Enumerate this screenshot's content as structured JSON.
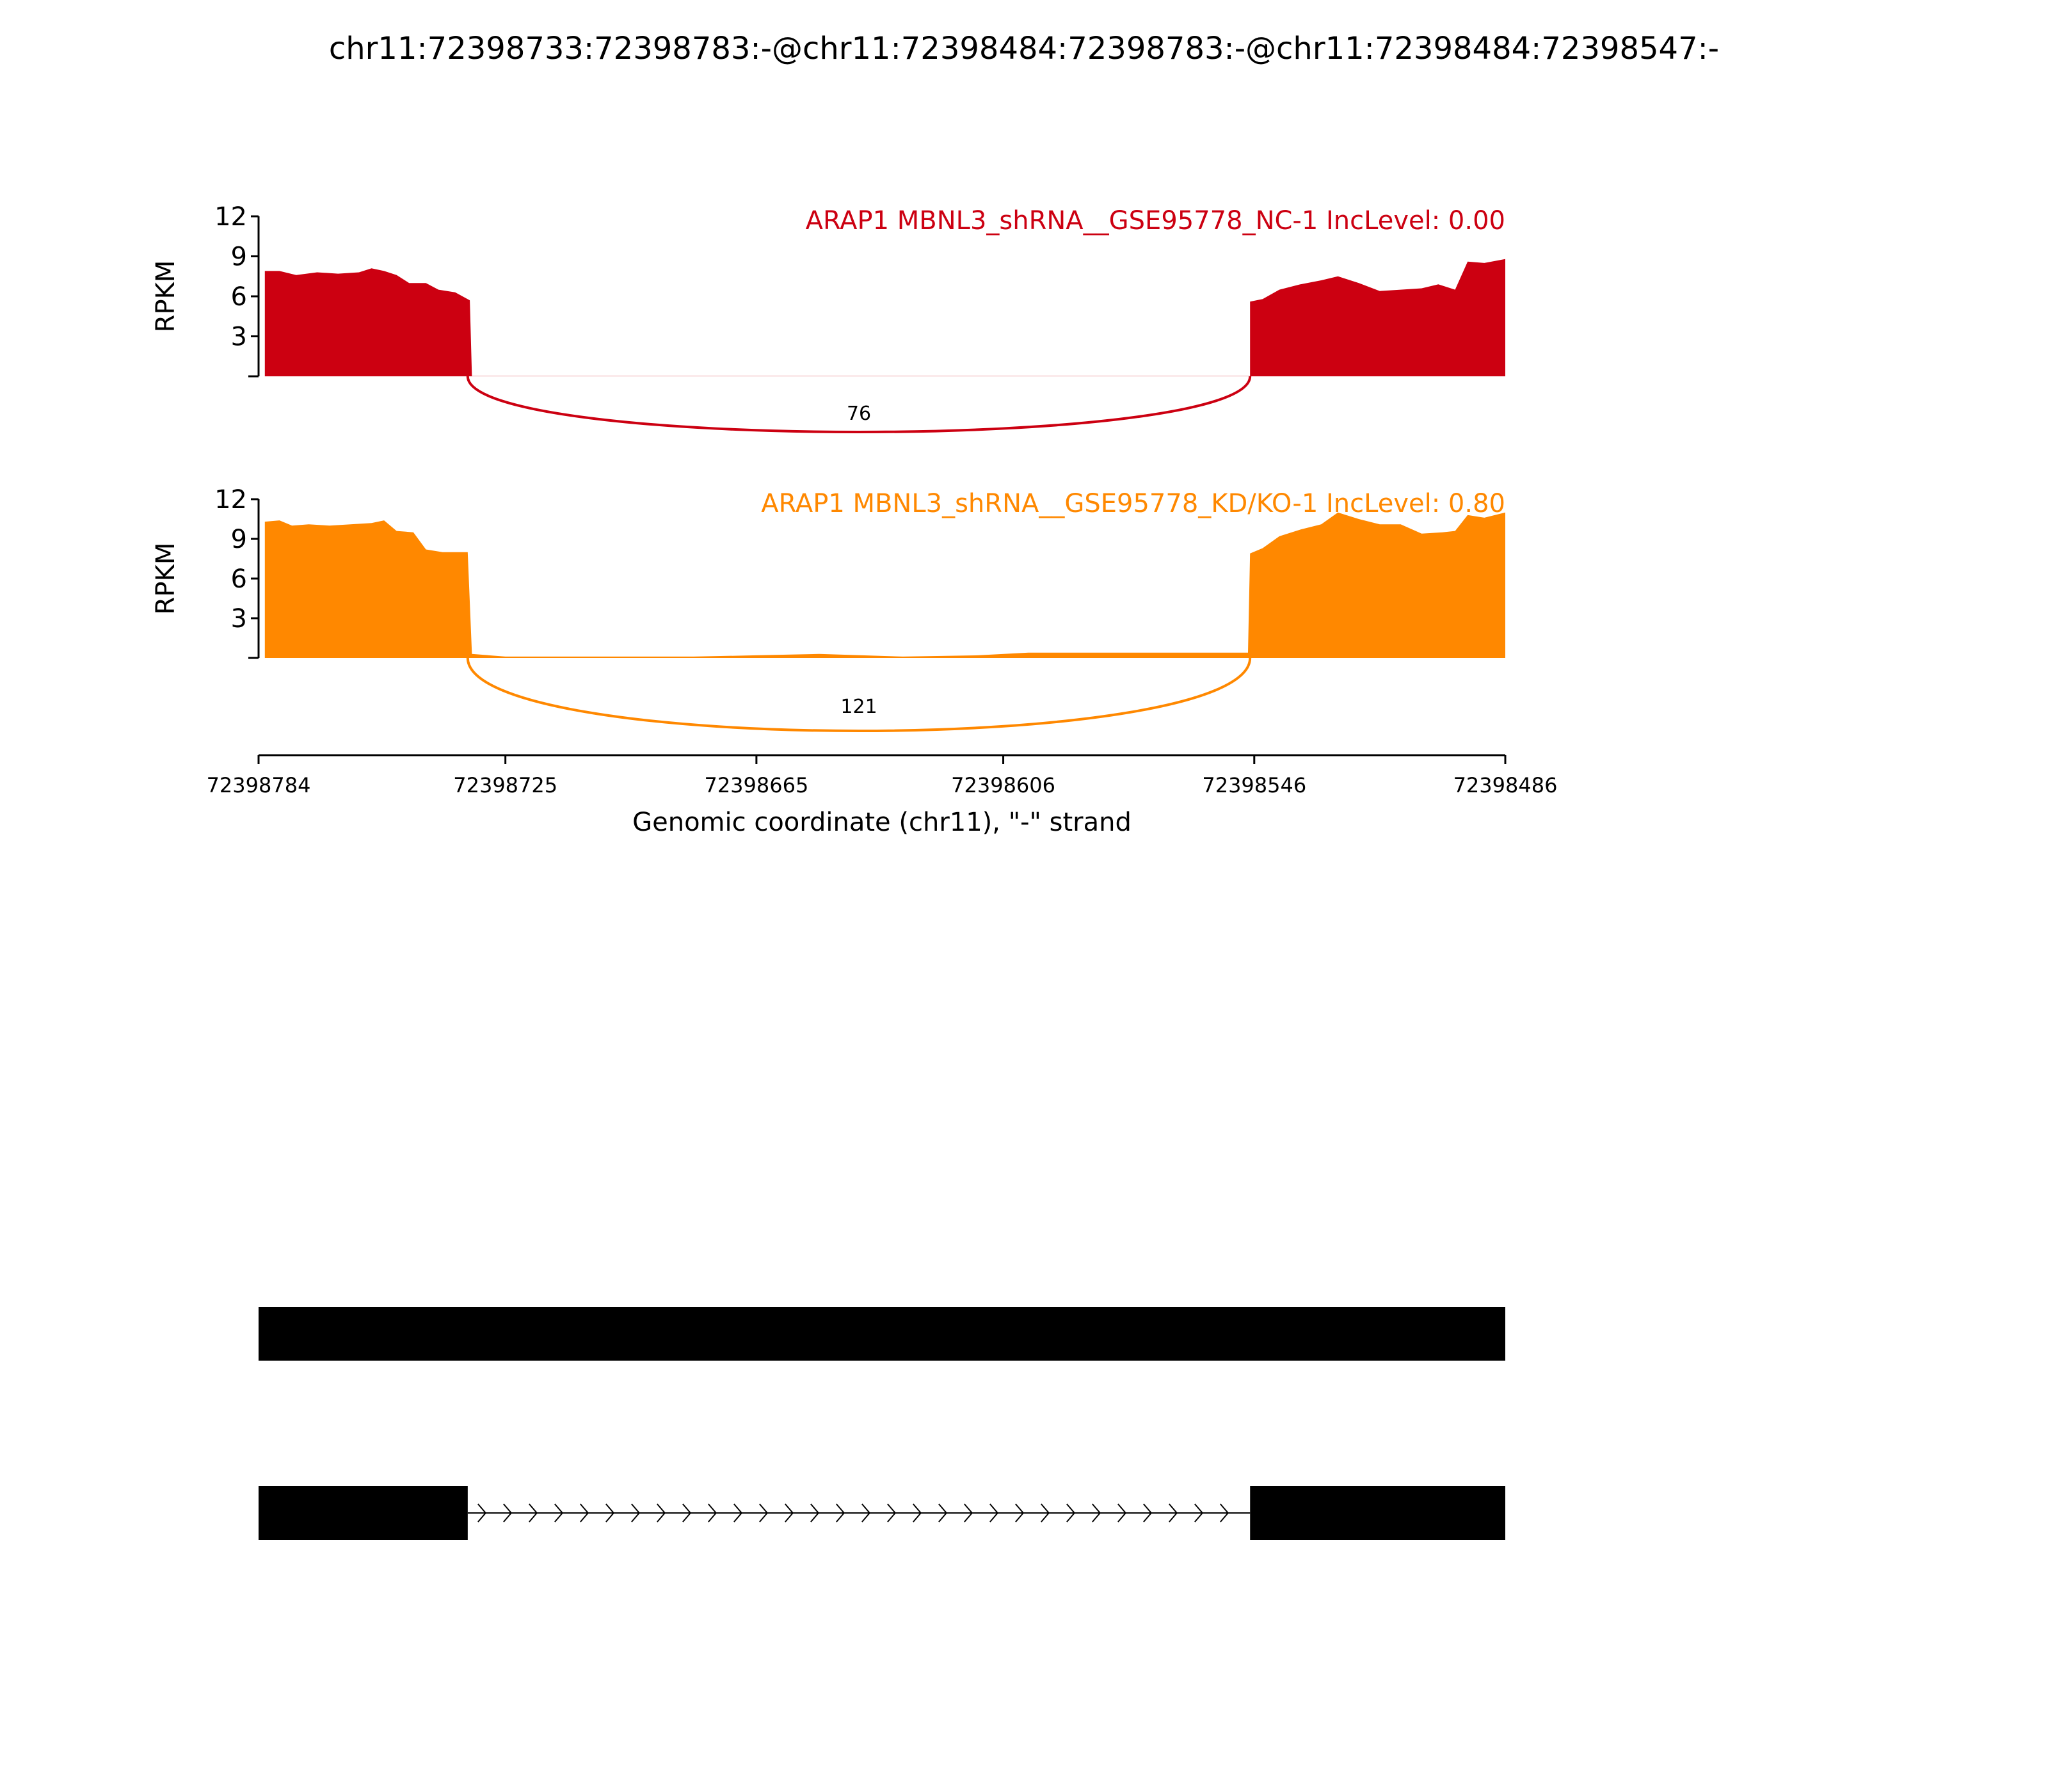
{
  "title": "chr11:72398733:72398783:-@chr11:72398484:72398783:-@chr11:72398484:72398547:-",
  "chart_data": {
    "type": "area",
    "x_axis": {
      "label": "Genomic coordinate (chr11), \"-\" strand",
      "reversed": true,
      "range": [
        72398784,
        72398486
      ],
      "ticks": [
        72398784,
        72398725,
        72398665,
        72398606,
        72398546,
        72398486
      ],
      "tick_labels": [
        "72398784",
        "72398725",
        "72398665",
        "72398606",
        "72398546",
        "72398486"
      ]
    },
    "panels": [
      {
        "name": "ARAP1 MBNL3_shRNA__GSE95778_NC-1 IncLevel: 0.00",
        "color": "#cc0011",
        "ylabel": "RPKM",
        "ylim": [
          0,
          12
        ],
        "yticks": [
          3,
          6,
          9,
          12
        ],
        "junction": {
          "from": 72398734,
          "to": 72398547,
          "count": "76"
        },
        "coverage": [
          [
            72398782.5,
            7.9
          ],
          [
            72398779,
            7.9
          ],
          [
            72398775,
            7.6
          ],
          [
            72398770,
            7.8
          ],
          [
            72398765,
            7.7
          ],
          [
            72398760,
            7.8
          ],
          [
            72398757,
            8.1
          ],
          [
            72398754,
            7.9
          ],
          [
            72398751,
            7.6
          ],
          [
            72398748,
            7.0
          ],
          [
            72398744,
            7.0
          ],
          [
            72398741,
            6.5
          ],
          [
            72398737,
            6.3
          ],
          [
            72398733.5,
            5.7
          ],
          [
            72398733,
            0
          ],
          [
            72398733,
            0.02
          ],
          [
            72398547,
            0.02
          ],
          [
            72398547,
            5.6
          ],
          [
            72398544,
            5.8
          ],
          [
            72398540,
            6.5
          ],
          [
            72398535,
            6.9
          ],
          [
            72398530,
            7.2
          ],
          [
            72398526,
            7.5
          ],
          [
            72398521,
            7.0
          ],
          [
            72398516,
            6.4
          ],
          [
            72398511,
            6.5
          ],
          [
            72398506,
            6.6
          ],
          [
            72398502,
            6.9
          ],
          [
            72398498,
            6.5
          ],
          [
            72398495,
            8.6
          ],
          [
            72398491,
            8.5
          ],
          [
            72398486,
            8.8
          ]
        ]
      },
      {
        "name": "ARAP1 MBNL3_shRNA__GSE95778_KD/KO-1 IncLevel: 0.80",
        "color": "#ff8800",
        "ylabel": "RPKM",
        "ylim": [
          0,
          12
        ],
        "yticks": [
          3,
          6,
          9,
          12
        ],
        "junction": {
          "from": 72398734,
          "to": 72398547,
          "count": "121"
        },
        "coverage": [
          [
            72398782.5,
            10.3
          ],
          [
            72398779,
            10.4
          ],
          [
            72398776,
            10.0
          ],
          [
            72398772,
            10.1
          ],
          [
            72398767,
            10.0
          ],
          [
            72398762,
            10.1
          ],
          [
            72398757,
            10.2
          ],
          [
            72398754,
            10.4
          ],
          [
            72398751,
            9.6
          ],
          [
            72398747,
            9.5
          ],
          [
            72398744,
            8.2
          ],
          [
            72398740,
            8.0
          ],
          [
            72398734,
            8.0
          ],
          [
            72398733,
            0.3
          ],
          [
            72398725,
            0.1
          ],
          [
            72398700,
            0.1
          ],
          [
            72398680,
            0.1
          ],
          [
            72398665,
            0.2
          ],
          [
            72398650,
            0.3
          ],
          [
            72398630,
            0.1
          ],
          [
            72398612,
            0.2
          ],
          [
            72398600,
            0.4
          ],
          [
            72398580,
            0.4
          ],
          [
            72398560,
            0.4
          ],
          [
            72398547.5,
            0.4
          ],
          [
            72398547,
            7.9
          ],
          [
            72398544,
            8.3
          ],
          [
            72398540,
            9.2
          ],
          [
            72398535,
            9.7
          ],
          [
            72398530,
            10.1
          ],
          [
            72398526,
            11.0
          ],
          [
            72398521,
            10.5
          ],
          [
            72398516,
            10.1
          ],
          [
            72398511,
            10.1
          ],
          [
            72398506,
            9.4
          ],
          [
            72398501,
            9.5
          ],
          [
            72398498,
            9.6
          ],
          [
            72398495,
            10.8
          ],
          [
            72398491,
            10.6
          ],
          [
            72398486,
            11.0
          ]
        ]
      }
    ],
    "isoforms": [
      {
        "exons": [
          [
            72398784,
            72398733
          ],
          [
            72398734,
            72398547
          ],
          [
            72398548,
            72398486
          ]
        ],
        "intron_arrows": false
      },
      {
        "exons": [
          [
            72398784,
            72398734
          ],
          [
            72398547,
            72398486
          ]
        ],
        "intron_arrows": true
      }
    ]
  }
}
